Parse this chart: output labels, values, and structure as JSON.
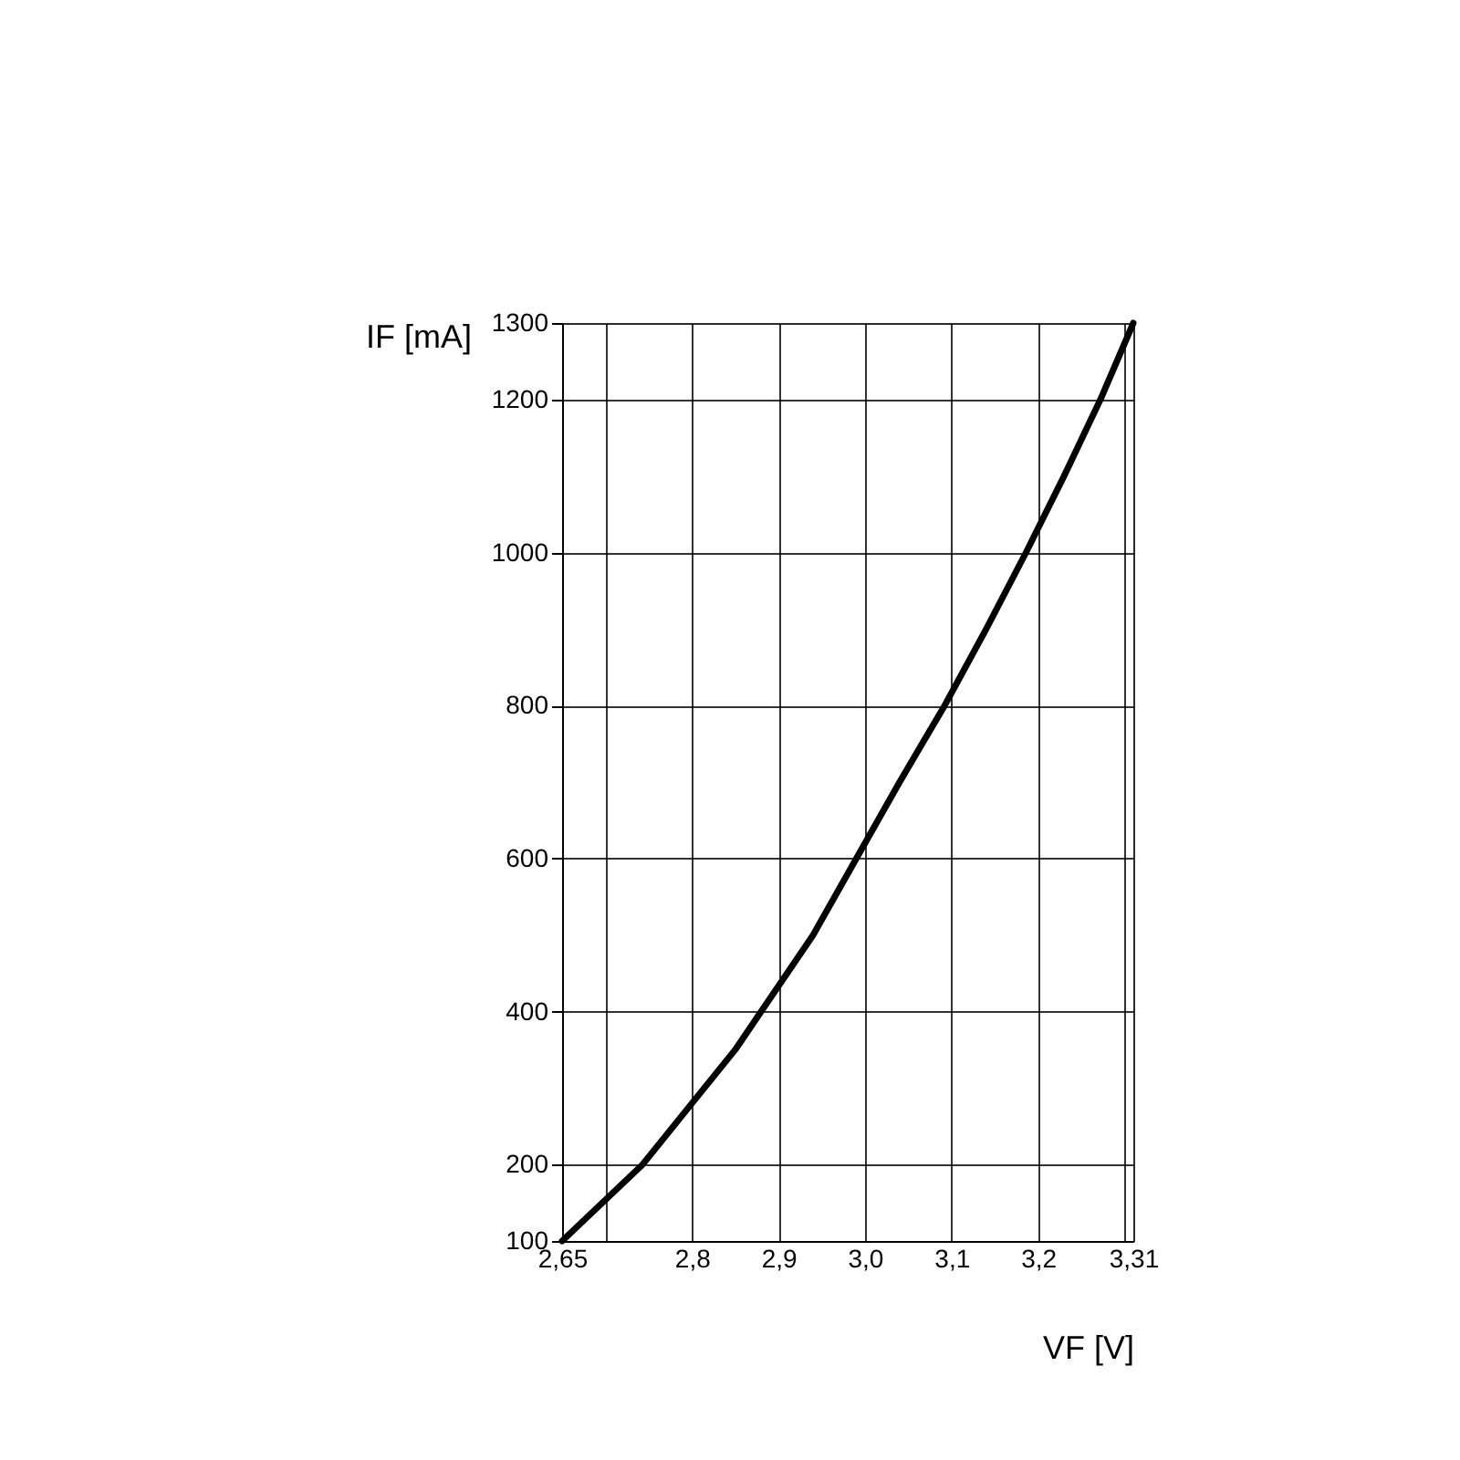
{
  "chart_data": {
    "type": "line",
    "xlabel": "VF [V]",
    "ylabel": "IF [mA]",
    "x": [
      2.65,
      2.743,
      2.8,
      2.85,
      2.88,
      2.94,
      2.99,
      3.04,
      3.092,
      3.14,
      3.186,
      3.23,
      3.272,
      3.31
    ],
    "series": [
      {
        "color": "#000000",
        "values": [
          100,
          200,
          280,
          350,
          400,
          500,
          600,
          700,
          800,
          900,
          1000,
          1100,
          1200,
          1300
        ]
      }
    ],
    "xlim": [
      2.65,
      3.31
    ],
    "ylim": [
      100,
      1300
    ],
    "xticks": [
      {
        "value": 2.65,
        "label": "2,65"
      },
      {
        "value": 2.7,
        "label": null
      },
      {
        "value": 2.8,
        "label": "2,8"
      },
      {
        "value": 2.9,
        "label": "2,9"
      },
      {
        "value": 3.0,
        "label": "3,0"
      },
      {
        "value": 3.1,
        "label": "3,1"
      },
      {
        "value": 3.2,
        "label": "3,2"
      },
      {
        "value": 3.3,
        "label": null
      },
      {
        "value": 3.31,
        "label": "3,31"
      }
    ],
    "yticks": [
      100,
      200,
      400,
      600,
      800,
      1000,
      1200,
      1300
    ],
    "grid": true,
    "marker": "none",
    "line_style": "solid"
  }
}
